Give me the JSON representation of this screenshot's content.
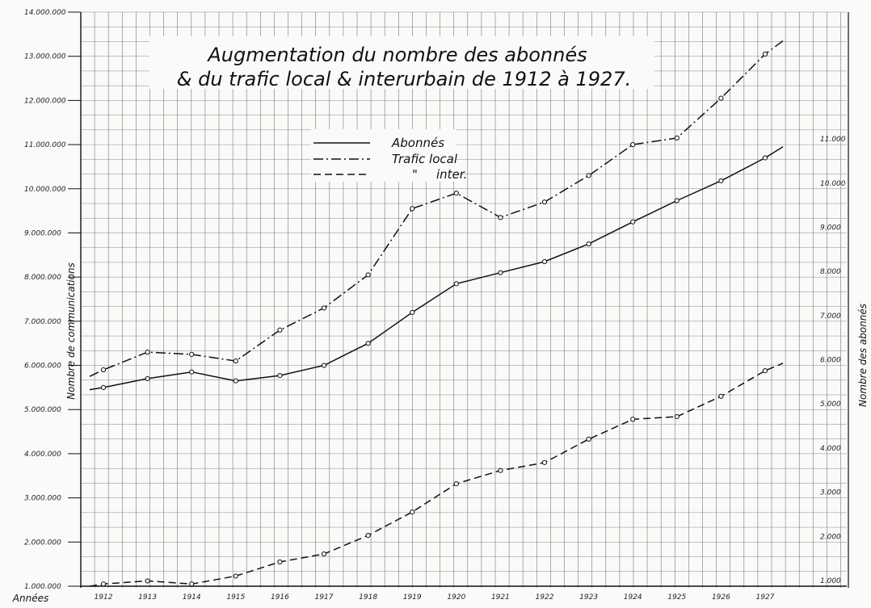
{
  "chart_data": {
    "type": "line",
    "title_line1": "Augmentation du nombre des abonnés",
    "title_line2": "& du trafic local & interurbain de 1912 à 1927.",
    "ylabel_left": "Nombre de communications",
    "ylabel_right": "Nombre des abonnés",
    "xlabel": "Années",
    "categories": [
      "1912",
      "1913",
      "1914",
      "1915",
      "1916",
      "1917",
      "1918",
      "1919",
      "1920",
      "1921",
      "1922",
      "1923",
      "1924",
      "1925",
      "1926",
      "1927"
    ],
    "left_ticks": [
      "1.000.000",
      "2.000.000",
      "3.000.000",
      "4.000.000",
      "5.000.000",
      "6.000.000",
      "7.000.000",
      "8.000.000",
      "9.000.000",
      "10.000.000",
      "11.000.000",
      "12.000.000",
      "13.000.000",
      "14.000.000"
    ],
    "right_ticks": [
      "1.000",
      "2.000",
      "3.000",
      "4.000",
      "5.000",
      "6.000",
      "7.000",
      "8.000",
      "9.000",
      "10.000",
      "11.000"
    ],
    "ylim_left": [
      1000000,
      14000000
    ],
    "ylim_right": [
      1000,
      14000
    ],
    "series": [
      {
        "name": "Abonnés",
        "axis": "right",
        "style": "solid",
        "start_value": 5450,
        "end_value": 10950,
        "values": [
          5500,
          5700,
          5850,
          5650,
          5770,
          6000,
          6500,
          7200,
          7850,
          8100,
          8350,
          8750,
          9250,
          9730,
          10180,
          10700
        ]
      },
      {
        "name": "Trafic local",
        "axis": "left",
        "style": "dashdot",
        "start_value": 5750000,
        "end_value": 13350000,
        "values": [
          5900000,
          6300000,
          6250000,
          6100000,
          6800000,
          7300000,
          8050000,
          9550000,
          9900000,
          9350000,
          9700000,
          10300000,
          11000000,
          11150000,
          12050000,
          13050000
        ]
      },
      {
        "name": "inter.",
        "legend_prefix": "\"",
        "axis": "left",
        "style": "dashed",
        "start_value": 1000000,
        "end_value": 6050000,
        "values": [
          1050000,
          1120000,
          1050000,
          1230000,
          1550000,
          1730000,
          2150000,
          2680000,
          3320000,
          3620000,
          3800000,
          4330000,
          4780000,
          4840000,
          5300000,
          5880000
        ]
      }
    ],
    "grid": true,
    "legend_position": "top-center"
  }
}
